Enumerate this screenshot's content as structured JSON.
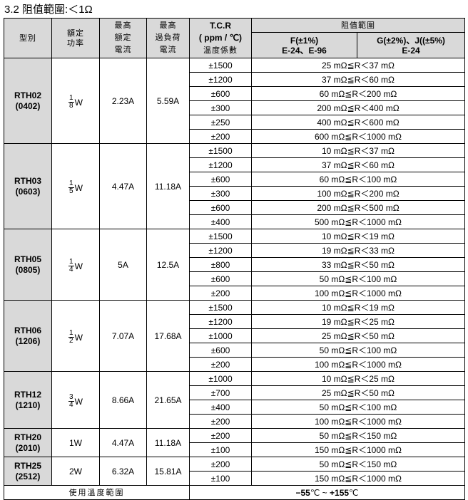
{
  "title": "3.2 阻值範圍:＜1Ω",
  "header": {
    "type": "型別",
    "power": "額定\n功率",
    "current": "最高\n額定\n電流",
    "overload": "最高\n過負荷\n電流",
    "tcr_1": "T.C.R",
    "tcr_2": "( ppm / ℃)",
    "tcr_3": "溫度係數",
    "range": "阻值範圍",
    "f_1": "F(±1%)",
    "f_2": "E-24、E-96",
    "g_1": "G(±2%)、J((±5%)",
    "g_2": "E-24"
  },
  "groups": [
    {
      "type": "RTH02",
      "size": "(0402)",
      "power_num": "1",
      "power_den": "8",
      "power_unit": "W",
      "current": "2.23A",
      "overload": "5.59A",
      "rows": [
        [
          "±1500",
          "25 mΩ≦R＜37 mΩ"
        ],
        [
          "±1200",
          "37 mΩ≦R＜60 mΩ"
        ],
        [
          "±600",
          "60 mΩ≦R＜200 mΩ"
        ],
        [
          "±300",
          "200 mΩ≦R＜400 mΩ"
        ],
        [
          "±250",
          "400 mΩ≦R＜600 mΩ"
        ],
        [
          "±200",
          "600 mΩ≦R＜1000 mΩ"
        ]
      ]
    },
    {
      "type": "RTH03",
      "size": "(0603)",
      "power_num": "1",
      "power_den": "5",
      "power_unit": "W",
      "current": "4.47A",
      "overload": "11.18A",
      "rows": [
        [
          "±1500",
          "10 mΩ≦R＜37 mΩ"
        ],
        [
          "±1200",
          "37 mΩ≦R＜60 mΩ"
        ],
        [
          "±600",
          "60 mΩ≦R＜100 mΩ"
        ],
        [
          "±300",
          "100 mΩ≦R＜200 mΩ"
        ],
        [
          "±600",
          "200 mΩ≦R＜500 mΩ"
        ],
        [
          "±400",
          "500 mΩ≦R＜1000 mΩ"
        ]
      ]
    },
    {
      "type": "RTH05",
      "size": "(0805)",
      "power_num": "1",
      "power_den": "4",
      "power_unit": "W",
      "current": "5A",
      "overload": "12.5A",
      "rows": [
        [
          "±1500",
          "10 mΩ≦R＜19 mΩ"
        ],
        [
          "±1200",
          "19 mΩ≦R＜33 mΩ"
        ],
        [
          "±800",
          "33 mΩ≦R＜50 mΩ"
        ],
        [
          "±600",
          "50 mΩ≦R＜100 mΩ"
        ],
        [
          "±200",
          "100 mΩ≦R＜1000 mΩ"
        ]
      ]
    },
    {
      "type": "RTH06",
      "size": "(1206)",
      "power_num": "1",
      "power_den": "2",
      "power_unit": "W",
      "current": "7.07A",
      "overload": "17.68A",
      "rows": [
        [
          "±1500",
          "10 mΩ≦R＜19 mΩ"
        ],
        [
          "±1200",
          "19 mΩ≦R＜25 mΩ"
        ],
        [
          "±1000",
          "25 mΩ≦R＜50 mΩ"
        ],
        [
          "±600",
          "50 mΩ≦R＜100 mΩ"
        ],
        [
          "±200",
          "100 mΩ≦R＜1000 mΩ"
        ]
      ]
    },
    {
      "type": "RTH12",
      "size": "(1210)",
      "power_num": "3",
      "power_den": "4",
      "power_unit": "W",
      "current": "8.66A",
      "overload": "21.65A",
      "rows": [
        [
          "±1000",
          "10 mΩ≦R＜25 mΩ"
        ],
        [
          "±700",
          "25 mΩ≦R＜50 mΩ"
        ],
        [
          "±400",
          "50 mΩ≦R＜100 mΩ"
        ],
        [
          "±200",
          "100 mΩ≦R＜1000 mΩ"
        ]
      ]
    },
    {
      "type": "RTH20",
      "size": "(2010)",
      "power": "1W",
      "current": "4.47A",
      "overload": "11.18A",
      "rows": [
        [
          "±200",
          "50 mΩ≦R＜150 mΩ"
        ],
        [
          "±100",
          "150 mΩ≦R＜1000 mΩ"
        ]
      ]
    },
    {
      "type": "RTH25",
      "size": "(2512)",
      "power": "2W",
      "current": "6.32A",
      "overload": "15.81A",
      "rows": [
        [
          "±200",
          "50 mΩ≦R＜150 mΩ"
        ],
        [
          "±100",
          "150 mΩ≦R＜1000 mΩ"
        ]
      ]
    }
  ],
  "footer": {
    "label": "使用溫度範圍",
    "value_min": "−55",
    "value_max": "+155",
    "unit": "℃",
    "sep": "~"
  }
}
